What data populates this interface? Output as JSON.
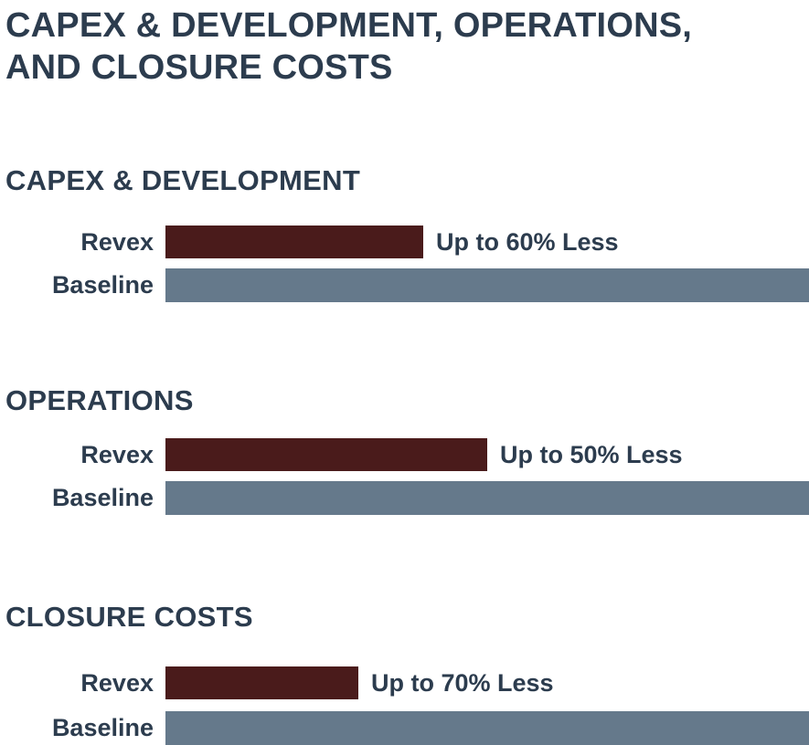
{
  "title": {
    "lines": [
      "CAPEX & DEVELOPMENT, OPERATIONS,",
      "AND CLOSURE COSTS"
    ]
  },
  "colors": {
    "text": "#2c3c4e",
    "revex_bar": "#4a1b1b",
    "baseline_bar": "#65798b",
    "background": "#ffffff"
  },
  "chart_data": [
    {
      "type": "bar",
      "orientation": "horizontal",
      "title": "CAPEX & DEVELOPMENT",
      "categories": [
        "Revex",
        "Baseline"
      ],
      "values": [
        40,
        100
      ],
      "value_unit": "percent of baseline cost",
      "annotations": [
        "Up to 60% Less",
        ""
      ],
      "bar_colors": [
        "#4a1b1b",
        "#65798b"
      ],
      "xlim": [
        0,
        100
      ],
      "grid": false,
      "legend": false
    },
    {
      "type": "bar",
      "orientation": "horizontal",
      "title": "OPERATIONS",
      "categories": [
        "Revex",
        "Baseline"
      ],
      "values": [
        50,
        100
      ],
      "value_unit": "percent of baseline cost",
      "annotations": [
        "Up to 50% Less",
        ""
      ],
      "bar_colors": [
        "#4a1b1b",
        "#65798b"
      ],
      "xlim": [
        0,
        100
      ],
      "grid": false,
      "legend": false
    },
    {
      "type": "bar",
      "orientation": "horizontal",
      "title": "CLOSURE COSTS",
      "categories": [
        "Revex",
        "Baseline"
      ],
      "values": [
        30,
        100
      ],
      "value_unit": "percent of baseline cost",
      "annotations": [
        "Up to 70% Less",
        ""
      ],
      "bar_colors": [
        "#4a1b1b",
        "#65798b"
      ],
      "xlim": [
        0,
        100
      ],
      "grid": false,
      "legend": false
    }
  ]
}
